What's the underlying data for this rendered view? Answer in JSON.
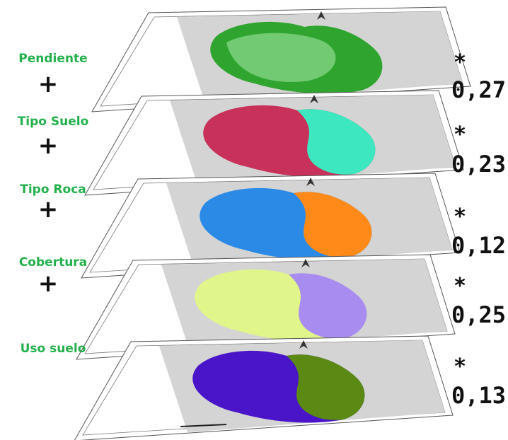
{
  "layers": [
    {
      "label": "Pendiente",
      "operator": "+",
      "multiplier": "*",
      "weight": "0,27"
    },
    {
      "label": "Tipo Suelo",
      "operator": "+",
      "multiplier": "*",
      "weight": "0,23"
    },
    {
      "label": "Tipo Roca",
      "operator": "+",
      "multiplier": "*",
      "weight": "0,12"
    },
    {
      "label": "Cobertura",
      "operator": "+",
      "multiplier": "*",
      "weight": "0,25"
    },
    {
      "label": "Uso suelo",
      "multiplier": "*",
      "weight": "0,13"
    }
  ]
}
